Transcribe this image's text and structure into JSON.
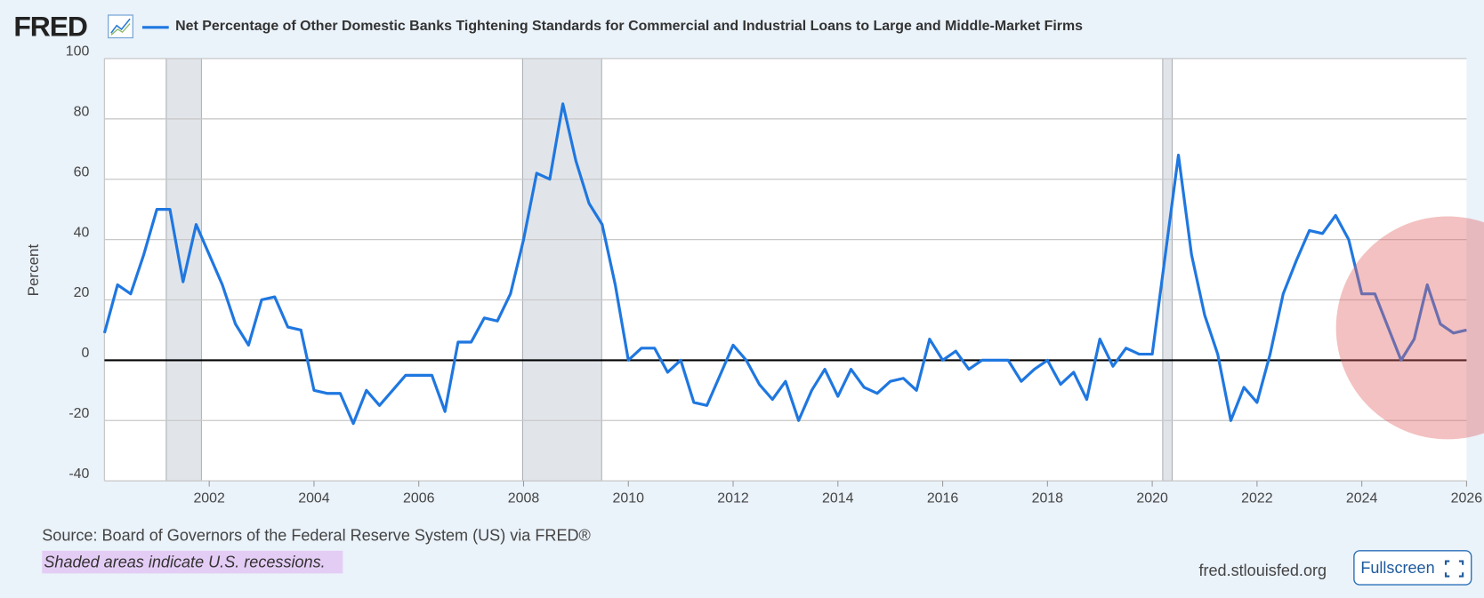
{
  "logo": "FRED",
  "chart_data": {
    "type": "line",
    "title": "Net Percentage of Other Domestic Banks Tightening Standards for Commercial and Industrial Loans to Large and Middle-Market Firms",
    "y_label": "Percent",
    "source": "Source: Board of Governors of the Federal Reserve System (US) via FRED®",
    "note": "Shaded areas indicate U.S. recessions.",
    "site": "fred.stlouisfed.org",
    "xlim": [
      2000,
      2026
    ],
    "xticks": [
      2002,
      2004,
      2006,
      2008,
      2010,
      2012,
      2014,
      2016,
      2018,
      2020,
      2022,
      2024,
      2026
    ],
    "ylim": [
      -40,
      100
    ],
    "yticks": [
      -40,
      -20,
      0,
      20,
      40,
      60,
      80,
      100
    ],
    "grid": true,
    "recessions": [
      [
        2001.18,
        2001.85
      ],
      [
        2007.98,
        2009.49
      ],
      [
        2020.2,
        2020.38
      ]
    ],
    "x": [
      2000,
      2000.25,
      2000.5,
      2000.75,
      2001,
      2001.25,
      2001.5,
      2001.75,
      2002,
      2002.25,
      2002.5,
      2002.75,
      2003,
      2003.25,
      2003.5,
      2003.75,
      2004,
      2004.25,
      2004.5,
      2004.75,
      2005,
      2005.25,
      2005.5,
      2005.75,
      2006,
      2006.25,
      2006.5,
      2006.75,
      2007,
      2007.25,
      2007.5,
      2007.75,
      2008,
      2008.25,
      2008.5,
      2008.75,
      2009,
      2009.25,
      2009.5,
      2009.75,
      2010,
      2010.25,
      2010.5,
      2010.75,
      2011,
      2011.25,
      2011.5,
      2011.75,
      2012,
      2012.25,
      2012.5,
      2012.75,
      2013,
      2013.25,
      2013.5,
      2013.75,
      2014,
      2014.25,
      2014.5,
      2014.75,
      2015,
      2015.25,
      2015.5,
      2015.75,
      2016,
      2016.25,
      2016.5,
      2016.75,
      2017,
      2017.25,
      2017.5,
      2017.75,
      2018,
      2018.25,
      2018.5,
      2018.75,
      2019,
      2019.25,
      2019.5,
      2019.75,
      2020,
      2020.25,
      2020.5,
      2020.75,
      2021,
      2021.25,
      2021.5,
      2021.75,
      2022,
      2022.25,
      2022.5,
      2022.75,
      2023,
      2023.25,
      2023.5,
      2023.75,
      2024,
      2024.25,
      2024.5,
      2024.75,
      2025,
      2025.25,
      2025.5,
      2025.75,
      2026
    ],
    "series": [
      {
        "name": "Net Percentage of Other Domestic Banks Tightening Standards for Commercial and Industrial Loans to Large and Middle-Market Firms",
        "color": "#1f77e0",
        "values": [
          9,
          25,
          22,
          35,
          50,
          50,
          26,
          45,
          35,
          25,
          12,
          5,
          20,
          21,
          11,
          10,
          -10,
          -11,
          -11,
          -21,
          -10,
          -15,
          -10,
          -5,
          -5,
          -5,
          -17,
          6,
          6,
          14,
          13,
          22,
          40,
          62,
          60,
          85,
          66,
          52,
          45,
          25,
          0,
          4,
          4,
          -4,
          0,
          -14,
          -15,
          -5,
          5,
          0,
          -8,
          -13,
          -7,
          -20,
          -10,
          -3,
          -12,
          -3,
          -9,
          -11,
          -7,
          -6,
          -10,
          7,
          0,
          3,
          -3,
          0,
          0,
          0,
          -7,
          -3,
          0,
          -8,
          -4,
          -13,
          7,
          -2,
          4,
          2,
          2,
          35,
          68,
          35,
          15,
          2,
          -20,
          -9,
          -14,
          2,
          22,
          33,
          43,
          42,
          48,
          40,
          22,
          22,
          11,
          0,
          7,
          25,
          12,
          9,
          10
        ]
      }
    ]
  },
  "button": "Fullscreen"
}
